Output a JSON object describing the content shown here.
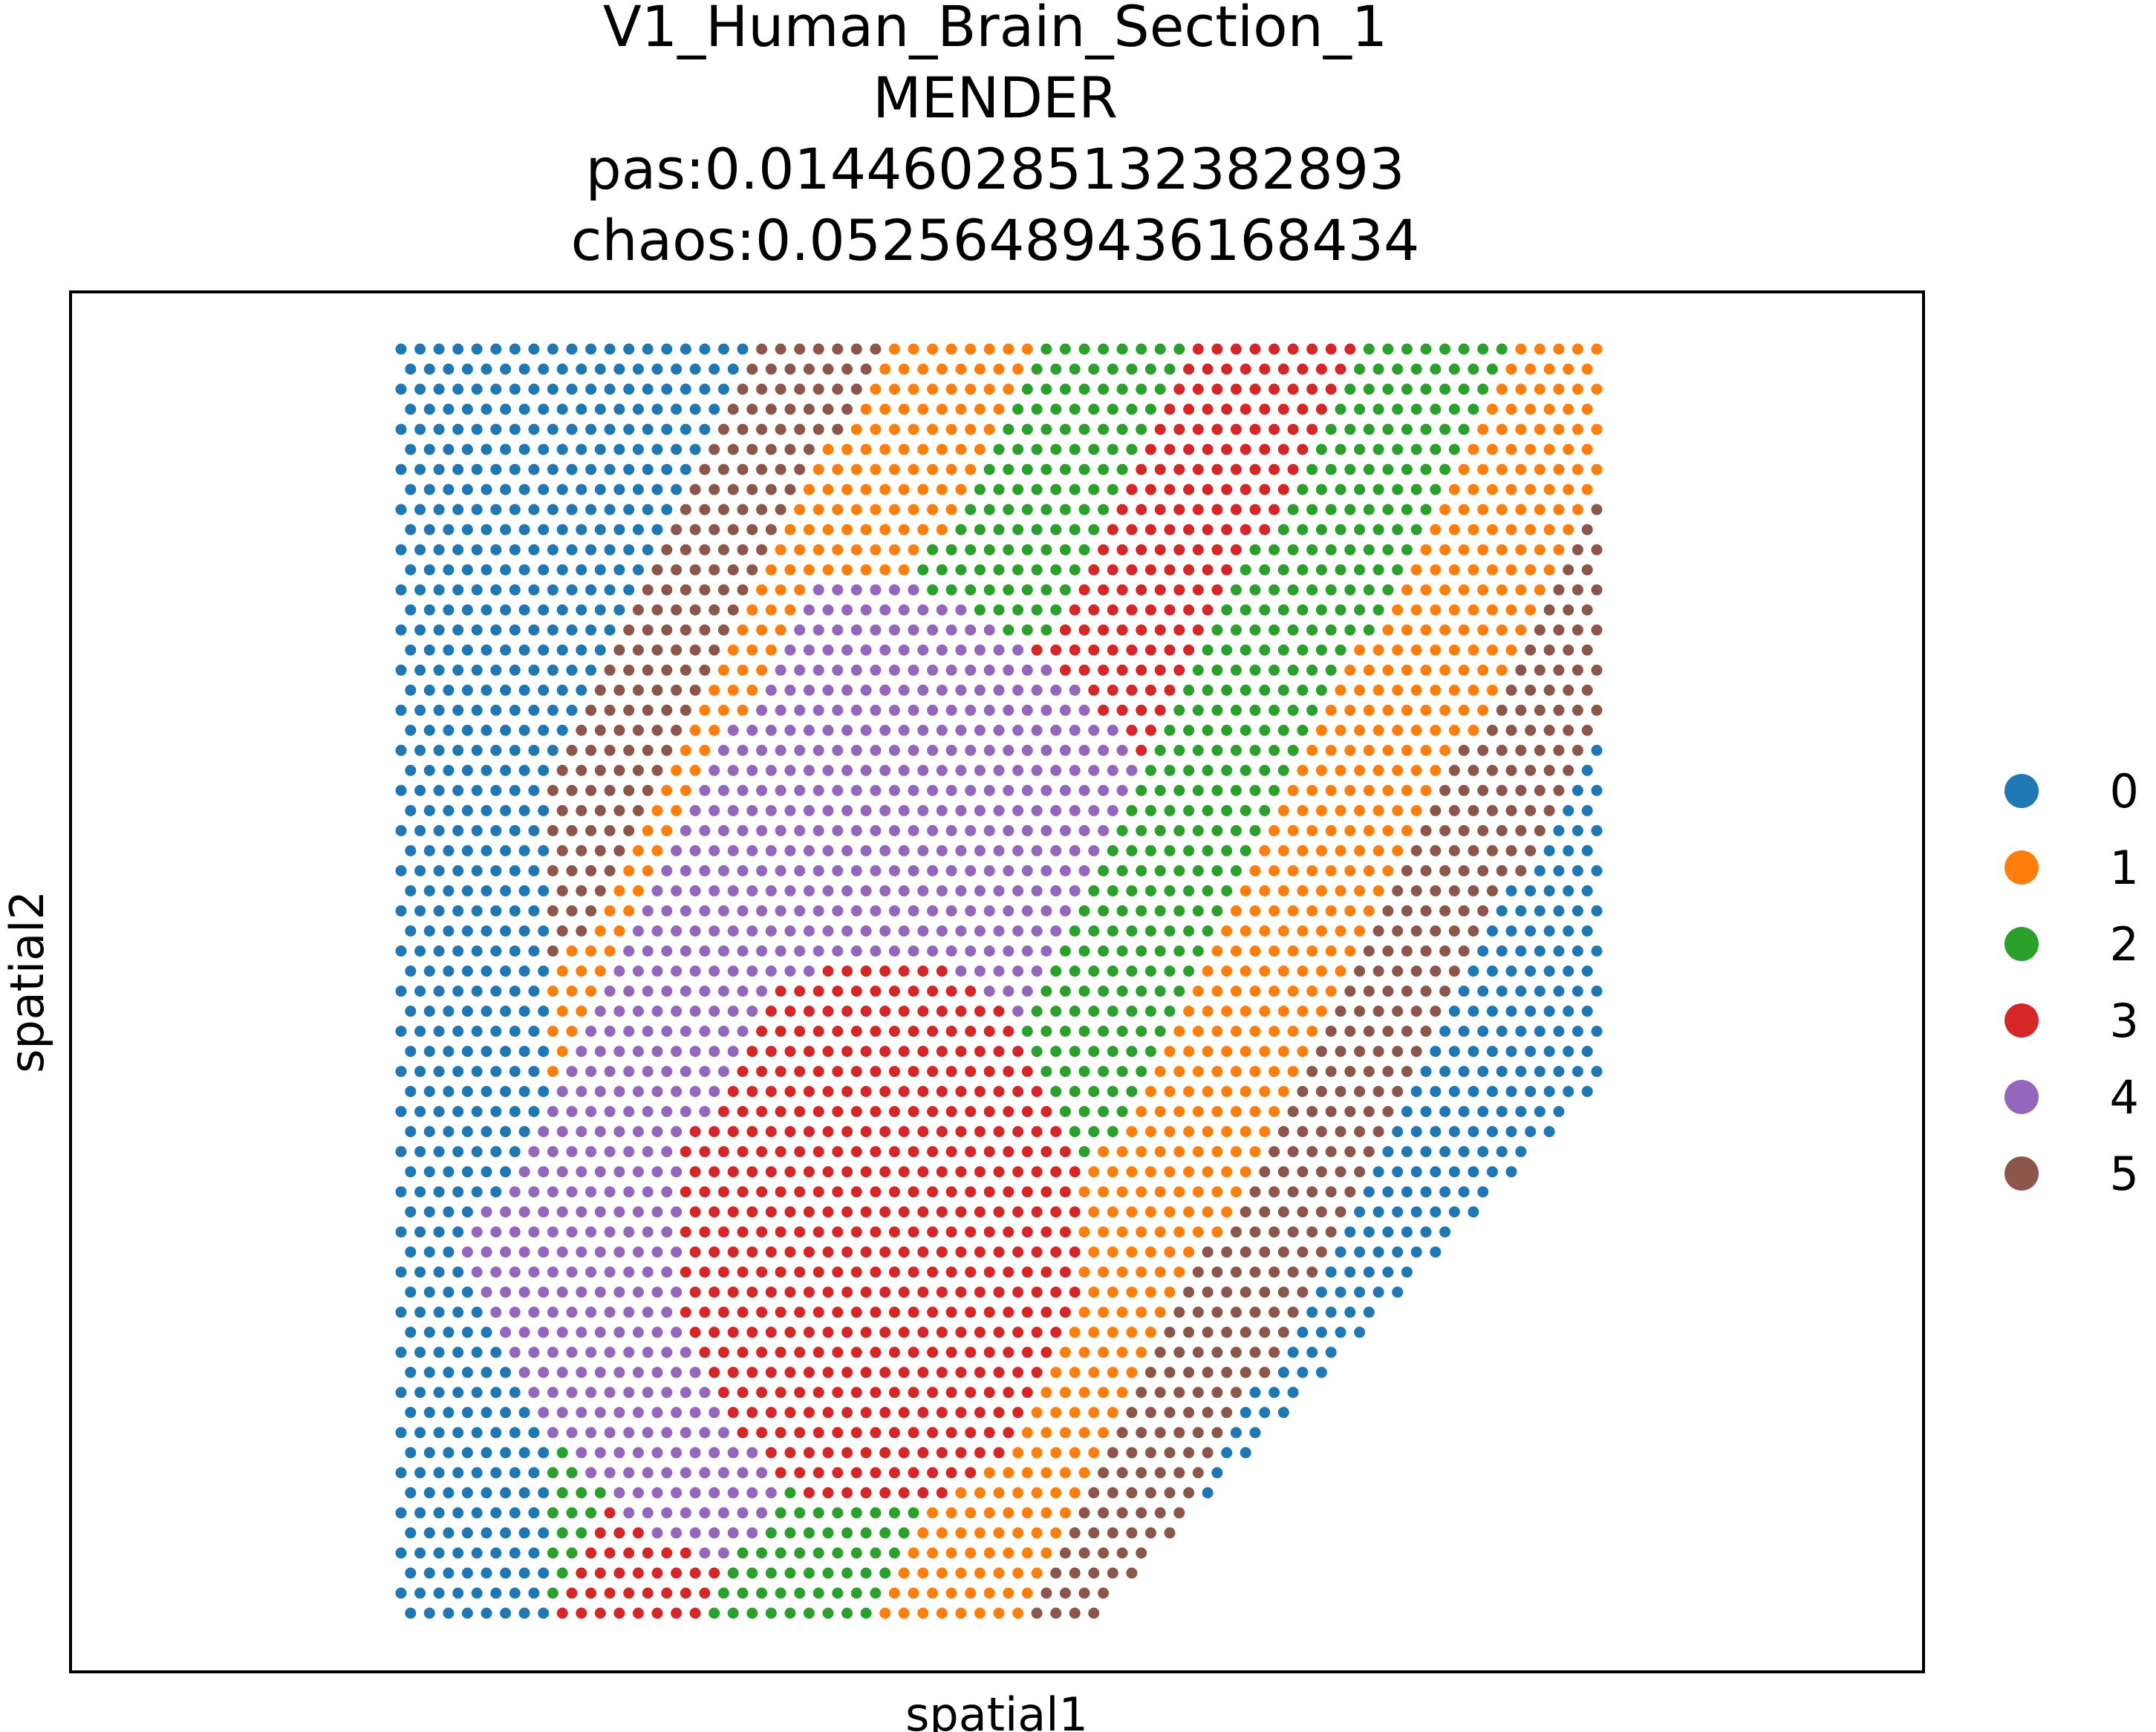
{
  "chart_data": {
    "type": "scatter",
    "title_lines": [
      "V1_Human_Brain_Section_1",
      "MENDER",
      "pas:0.01446028513238289​3",
      "chaos:0.05256489436168434"
    ],
    "xlabel": "spatial1",
    "ylabel": "spatial2",
    "xlim": [
      0,
      1
    ],
    "ylim": [
      0,
      1
    ],
    "grid": false,
    "ticks_visible": false,
    "legend_position": "right",
    "point_grid": {
      "rows": 64,
      "cols": 64
    },
    "legend": [
      {
        "label": "0",
        "color": "#1f77b4"
      },
      {
        "label": "1",
        "color": "#ff7f0e"
      },
      {
        "label": "2",
        "color": "#2ca02c"
      },
      {
        "label": "3",
        "color": "#d62728"
      },
      {
        "label": "4",
        "color": "#9467bd"
      },
      {
        "label": "5",
        "color": "#8c564b"
      }
    ]
  }
}
